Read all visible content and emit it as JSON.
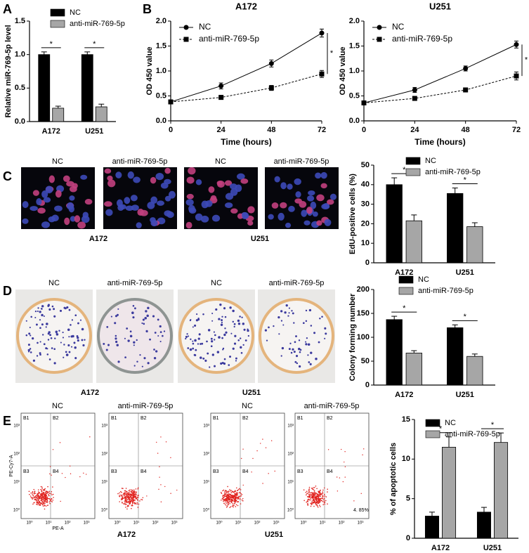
{
  "panel_labels": [
    "A",
    "B",
    "C",
    "D",
    "E"
  ],
  "images": {
    "C": {
      "columns": [
        "NC",
        "anti-miR-769-5p",
        "NC",
        "anti-miR-769-5p"
      ],
      "groups": [
        "A172",
        "U251"
      ]
    },
    "D": {
      "columns": [
        "NC",
        "anti-miR-769-5p",
        "NC",
        "anti-miR-769-5p"
      ],
      "groups": [
        "A172",
        "U251"
      ]
    },
    "E": {
      "columns": [
        "NC",
        "anti-miR-769-5p",
        "NC",
        "anti-miR-769-5p"
      ],
      "groups": [
        "A172",
        "U251"
      ],
      "quadrants": [
        "B1",
        "B2",
        "B3",
        "B4"
      ],
      "xlabel": "PE-A",
      "ylabel": "PE-Cy7-A",
      "ticks": [
        "10⁰",
        "10¹",
        "10²",
        "10³"
      ],
      "note": "4. 85%"
    }
  },
  "chart_data": [
    {
      "type": "bar",
      "ylabel": "Relative miR-769-5p level",
      "categories": [
        "A172",
        "U251"
      ],
      "series": [
        {
          "name": "NC",
          "color": "#000000",
          "values": [
            1.0,
            1.0
          ],
          "errors": [
            0.04,
            0.04
          ]
        },
        {
          "name": "anti-miR-769-5p",
          "color": "#a6a6a6",
          "values": [
            0.2,
            0.22
          ],
          "errors": [
            0.03,
            0.04
          ]
        }
      ],
      "ylim": [
        0,
        1.5
      ],
      "yticks": [
        {
          "value": 0,
          "label": "0.0"
        },
        {
          "value": 0.5,
          "label": "0.5"
        },
        {
          "value": 1,
          "label": "1.0"
        },
        {
          "value": 1.5,
          "label": "1.5"
        }
      ],
      "significance": [
        "*",
        "*"
      ]
    },
    {
      "type": "line",
      "title": "A172",
      "xlabel": "Time (hours)",
      "ylabel": "OD 450 value",
      "x": [
        0,
        24,
        48,
        72
      ],
      "series": [
        {
          "name": "NC",
          "color": "#000000",
          "marker": "circle",
          "dashed": false,
          "values": [
            0.38,
            0.7,
            1.15,
            1.76
          ],
          "errors": [
            0.04,
            0.06,
            0.07,
            0.08
          ]
        },
        {
          "name": "anti-miR-769-5p",
          "color": "#000000",
          "marker": "square",
          "dashed": true,
          "values": [
            0.38,
            0.47,
            0.66,
            0.94
          ],
          "errors": [
            0.04,
            0.04,
            0.05,
            0.07
          ]
        }
      ],
      "xlim": [
        0,
        72
      ],
      "xticks": [
        0,
        24,
        48,
        72
      ],
      "ylim": [
        0,
        2
      ],
      "yticks": [
        {
          "value": 0,
          "label": "0.0"
        },
        {
          "value": 0.5,
          "label": "0.5"
        },
        {
          "value": 1,
          "label": "1.0"
        },
        {
          "value": 1.5,
          "label": "1.5"
        },
        {
          "value": 2,
          "label": "2.0"
        }
      ],
      "significance": "*"
    },
    {
      "type": "line",
      "title": "U251",
      "xlabel": "Time (hours)",
      "ylabel": "OD 450 value",
      "x": [
        0,
        24,
        48,
        72
      ],
      "series": [
        {
          "name": "NC",
          "color": "#000000",
          "marker": "circle",
          "dashed": false,
          "values": [
            0.36,
            0.62,
            1.05,
            1.53
          ],
          "errors": [
            0.03,
            0.05,
            0.05,
            0.07
          ]
        },
        {
          "name": "anti-miR-769-5p",
          "color": "#000000",
          "marker": "square",
          "dashed": true,
          "values": [
            0.36,
            0.45,
            0.62,
            0.9
          ],
          "errors": [
            0.03,
            0.04,
            0.04,
            0.08
          ]
        }
      ],
      "xlim": [
        0,
        72
      ],
      "xticks": [
        0,
        24,
        48,
        72
      ],
      "ylim": [
        0,
        2
      ],
      "yticks": [
        {
          "value": 0,
          "label": "0.0"
        },
        {
          "value": 0.5,
          "label": "0.5"
        },
        {
          "value": 1,
          "label": "1.0"
        },
        {
          "value": 1.5,
          "label": "1.5"
        },
        {
          "value": 2,
          "label": "2.0"
        }
      ],
      "significance": "*"
    },
    {
      "type": "bar",
      "ylabel": "EdU-positive cells (%)",
      "categories": [
        "A172",
        "U251"
      ],
      "series": [
        {
          "name": "NC",
          "color": "#000000",
          "values": [
            40,
            35.5
          ],
          "errors": [
            3.5,
            2.8
          ]
        },
        {
          "name": "anti-miR-769-5p",
          "color": "#a6a6a6",
          "values": [
            21.5,
            18.5
          ],
          "errors": [
            3,
            2
          ]
        }
      ],
      "ylim": [
        0,
        50
      ],
      "yticks": [
        0,
        10,
        20,
        30,
        40,
        50
      ],
      "significance": [
        "*",
        "*"
      ]
    },
    {
      "type": "bar",
      "ylabel": "Colony forming number",
      "categories": [
        "A172",
        "U251"
      ],
      "series": [
        {
          "name": "NC",
          "color": "#000000",
          "values": [
            137,
            120
          ],
          "errors": [
            7,
            6
          ]
        },
        {
          "name": "anti-miR-769-5p",
          "color": "#a6a6a6",
          "values": [
            67,
            60
          ],
          "errors": [
            5,
            5
          ]
        }
      ],
      "ylim": [
        0,
        200
      ],
      "yticks": [
        0,
        50,
        100,
        150,
        200
      ],
      "significance": [
        "*",
        "*"
      ]
    },
    {
      "type": "bar",
      "ylabel": "% of apoptotic cells",
      "categories": [
        "A172",
        "U251"
      ],
      "series": [
        {
          "name": "NC",
          "color": "#000000",
          "values": [
            2.8,
            3.3
          ],
          "errors": [
            0.5,
            0.6
          ]
        },
        {
          "name": "anti-miR-769-5p",
          "color": "#a6a6a6",
          "values": [
            11.5,
            12.1
          ],
          "errors": [
            1.3,
            1.2
          ]
        }
      ],
      "ylim": [
        0,
        15
      ],
      "yticks": [
        0,
        5,
        10,
        15
      ],
      "significance": [
        "*",
        "*"
      ]
    }
  ]
}
